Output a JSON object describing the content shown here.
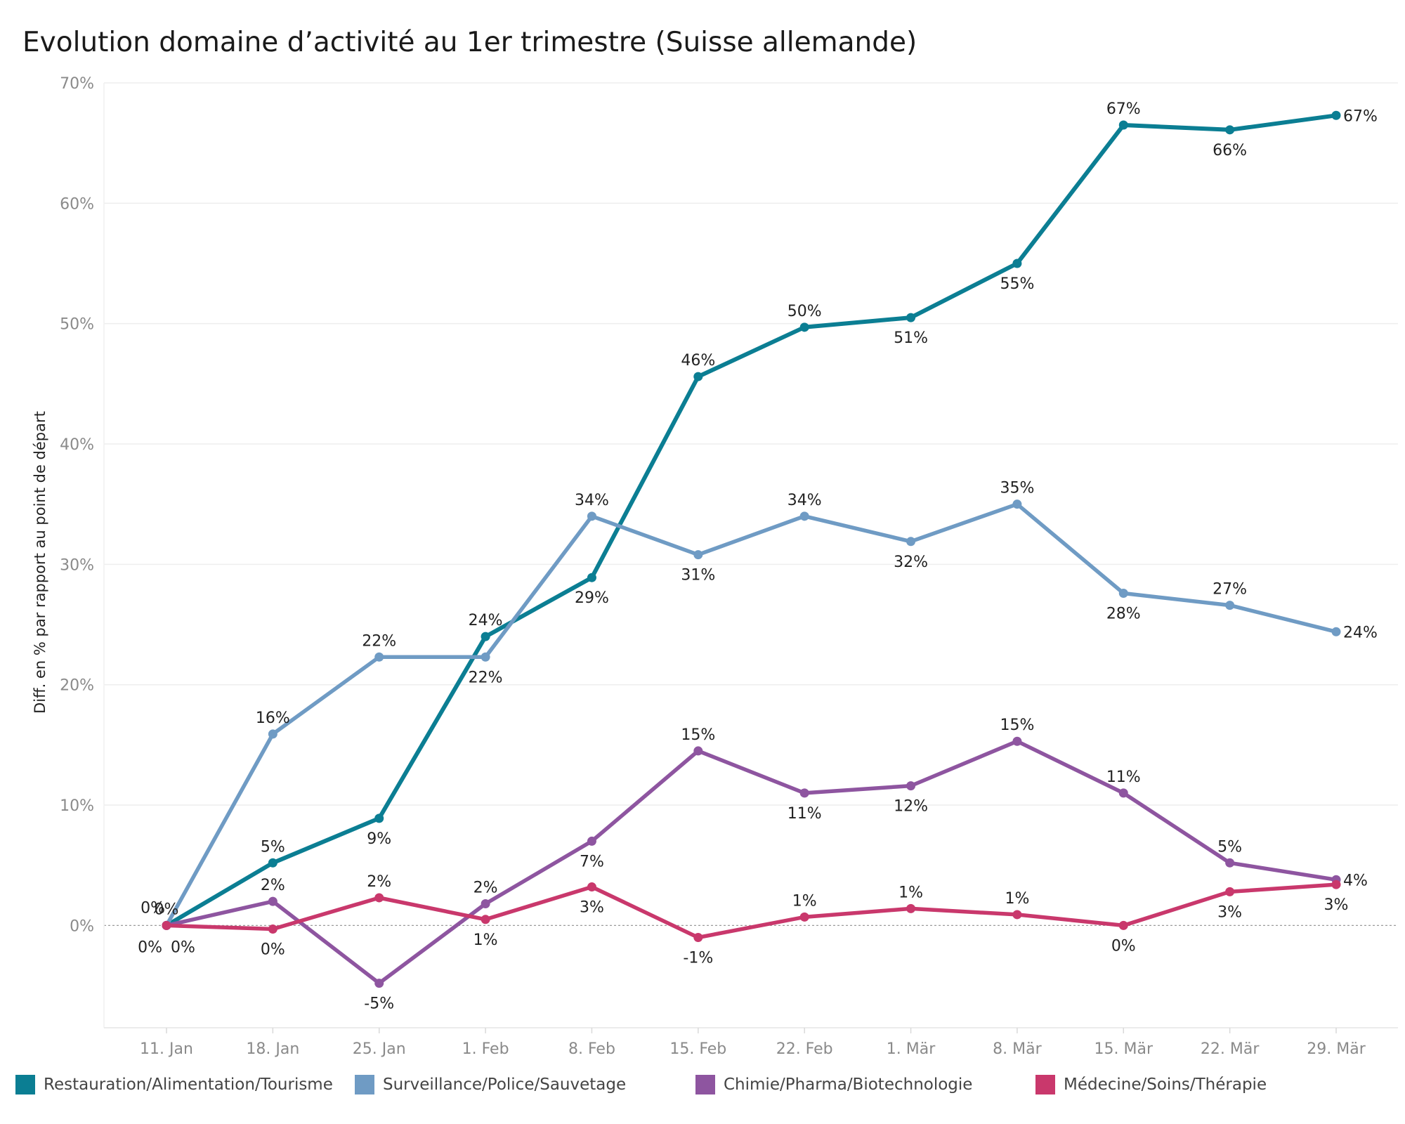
{
  "title": "Evolution domaine d’activité au 1er trimestre (Suisse allemande)",
  "chart_data": {
    "type": "line",
    "title": "Evolution domaine d’activité au 1er trimestre (Suisse allemande)",
    "xlabel": "",
    "ylabel": "Diff. en % par rapport au point de départ",
    "categories": [
      "11. Jan",
      "18. Jan",
      "25. Jan",
      "1. Feb",
      "8. Feb",
      "15. Feb",
      "22. Feb",
      "1. Mär",
      "8. Mär",
      "15. Mär",
      "22. Mär",
      "29. Mär"
    ],
    "ylim": [
      -8.5,
      70
    ],
    "yticks": [
      0,
      10,
      20,
      30,
      40,
      50,
      60,
      70
    ],
    "ytick_labels": [
      "0%",
      "10%",
      "20%",
      "30%",
      "40%",
      "50%",
      "60%",
      "70%"
    ],
    "grid": true,
    "legend_position": "bottom",
    "series": [
      {
        "name": "Restauration/Alimentation/Tourisme",
        "color": "#0b7e93",
        "values": [
          0,
          5.2,
          8.9,
          24.0,
          28.9,
          45.6,
          49.7,
          50.5,
          55.0,
          66.5,
          66.1,
          67.3
        ],
        "labels": [
          "0%",
          "5%",
          "9%",
          "24%",
          "29%",
          "46%",
          "50%",
          "51%",
          "55%",
          "67%",
          "66%",
          "67%"
        ],
        "label_pos": [
          "above",
          "above",
          "below",
          "above",
          "below",
          "above",
          "above",
          "below",
          "below",
          "above",
          "below",
          "right"
        ]
      },
      {
        "name": "Surveillance/Police/Sauvetage",
        "color": "#6f9bc4",
        "values": [
          0,
          15.9,
          22.3,
          22.3,
          34.0,
          30.8,
          34.0,
          31.9,
          35.0,
          27.6,
          26.6,
          24.4
        ],
        "labels": [
          "0%",
          "16%",
          "22%",
          "22%",
          "34%",
          "31%",
          "34%",
          "32%",
          "35%",
          "28%",
          "27%",
          "24%"
        ],
        "label_pos": [
          "below-left",
          "above",
          "above",
          "below",
          "above",
          "below",
          "above",
          "below",
          "above",
          "below",
          "above",
          "right"
        ]
      },
      {
        "name": "Chimie/Pharma/Biotechnologie",
        "color": "#8e55a0",
        "values": [
          0,
          2.0,
          -4.8,
          1.8,
          7.0,
          14.5,
          11.0,
          11.6,
          15.3,
          11.0,
          5.2,
          3.8
        ],
        "labels": [
          "0%",
          "2%",
          "-5%",
          "2%",
          "7%",
          "15%",
          "11%",
          "12%",
          "15%",
          "11%",
          "5%",
          "4%"
        ],
        "label_pos": [
          "below-right",
          "above",
          "below",
          "above",
          "below",
          "above",
          "below",
          "below",
          "above",
          "above",
          "above",
          "right"
        ]
      },
      {
        "name": "Médecine/Soins/Thérapie",
        "color": "#c9386c",
        "values": [
          0,
          -0.3,
          2.3,
          0.5,
          3.2,
          -1.0,
          0.7,
          1.4,
          0.9,
          0.0,
          2.8,
          3.4
        ],
        "labels": [
          "0%",
          "0%",
          "2%",
          "1%",
          "3%",
          "-1%",
          "1%",
          "1%",
          "1%",
          "0%",
          "3%",
          "3%"
        ],
        "label_pos": [
          "above-left",
          "below",
          "above",
          "below",
          "below",
          "below",
          "above",
          "above",
          "above",
          "below",
          "below",
          "below"
        ]
      }
    ]
  }
}
